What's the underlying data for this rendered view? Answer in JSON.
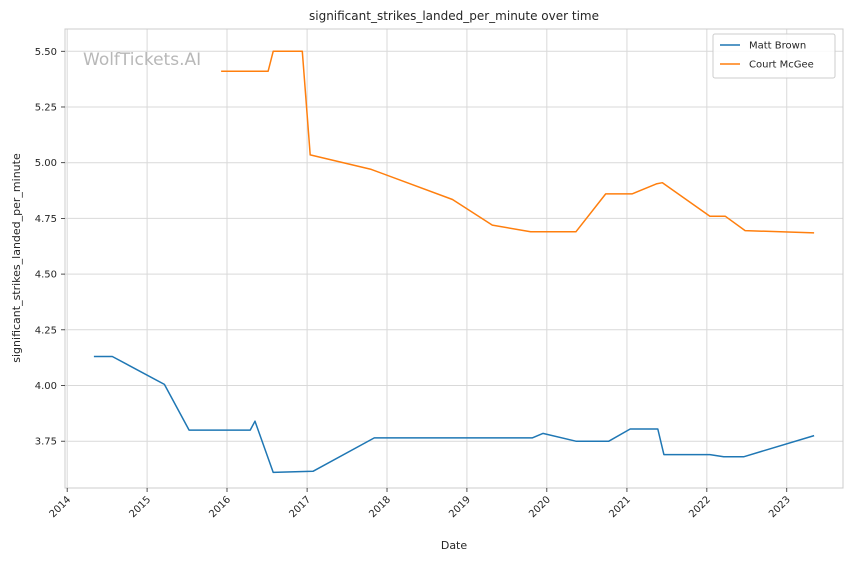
{
  "watermark": "WolfTickets.AI",
  "chart_data": {
    "type": "line",
    "title": "significant_strikes_landed_per_minute over time",
    "xlabel": "Date",
    "ylabel": "significant_strikes_landed_per_minute",
    "xlim": [
      "2013-12-22",
      "2023-09-15"
    ],
    "ylim": [
      3.54,
      5.6
    ],
    "x_ticks": [
      "2014-01-01",
      "2015-01-01",
      "2016-01-01",
      "2017-01-01",
      "2018-01-01",
      "2019-01-01",
      "2020-01-01",
      "2021-01-01",
      "2022-01-01",
      "2023-01-01"
    ],
    "x_tick_labels": [
      "2014",
      "2015",
      "2016",
      "2017",
      "2018",
      "2019",
      "2020",
      "2021",
      "2022",
      "2023"
    ],
    "y_ticks": [
      3.75,
      4.0,
      4.25,
      4.5,
      4.75,
      5.0,
      5.25,
      5.5
    ],
    "y_tick_labels": [
      "3.75",
      "4.00",
      "4.25",
      "4.50",
      "4.75",
      "5.00",
      "5.25",
      "5.50"
    ],
    "grid": true,
    "legend_position": "top-right",
    "series": [
      {
        "name": "Matt Brown",
        "color": "#1f77b4",
        "points": [
          [
            "2014-05-03",
            4.13
          ],
          [
            "2014-07-26",
            4.13
          ],
          [
            "2015-03-21",
            4.005
          ],
          [
            "2015-07-12",
            3.8
          ],
          [
            "2016-04-16",
            3.8
          ],
          [
            "2016-05-08",
            3.84
          ],
          [
            "2016-07-30",
            3.61
          ],
          [
            "2017-01-28",
            3.615
          ],
          [
            "2017-11-04",
            3.765
          ],
          [
            "2019-10-26",
            3.765
          ],
          [
            "2019-12-14",
            3.785
          ],
          [
            "2020-05-13",
            3.75
          ],
          [
            "2020-10-10",
            3.75
          ],
          [
            "2021-01-16",
            3.805
          ],
          [
            "2021-05-22",
            3.805
          ],
          [
            "2021-06-19",
            3.69
          ],
          [
            "2022-01-15",
            3.69
          ],
          [
            "2022-03-19",
            3.68
          ],
          [
            "2022-06-18",
            3.68
          ],
          [
            "2023-05-06",
            3.775
          ]
        ]
      },
      {
        "name": "Court McGee",
        "color": "#ff7f0e",
        "points": [
          [
            "2015-12-05",
            5.41
          ],
          [
            "2016-07-07",
            5.41
          ],
          [
            "2016-07-30",
            5.5
          ],
          [
            "2016-12-10",
            5.5
          ],
          [
            "2017-01-15",
            5.035
          ],
          [
            "2017-10-21",
            4.97
          ],
          [
            "2018-10-27",
            4.835
          ],
          [
            "2019-04-27",
            4.72
          ],
          [
            "2019-10-19",
            4.69
          ],
          [
            "2020-05-13",
            4.69
          ],
          [
            "2020-09-26",
            4.86
          ],
          [
            "2021-01-24",
            4.86
          ],
          [
            "2021-05-15",
            4.905
          ],
          [
            "2021-06-12",
            4.91
          ],
          [
            "2022-01-15",
            4.76
          ],
          [
            "2022-03-26",
            4.76
          ],
          [
            "2022-06-25",
            4.695
          ],
          [
            "2023-05-06",
            4.685
          ]
        ]
      }
    ]
  }
}
